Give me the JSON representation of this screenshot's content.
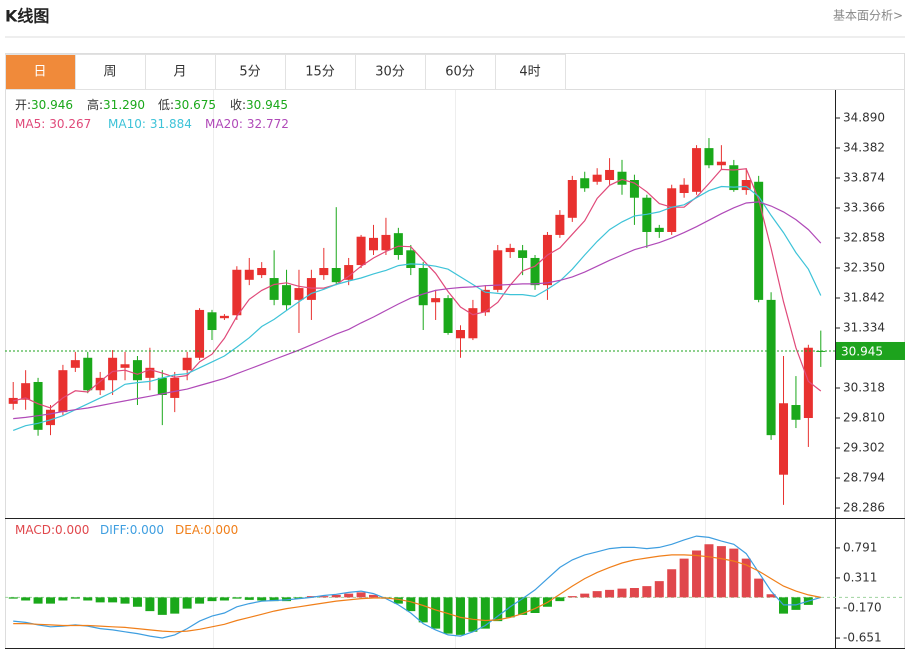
{
  "header": {
    "title": "K线图",
    "link": "基本面分析>"
  },
  "tabs": [
    "日",
    "周",
    "月",
    "5分",
    "15分",
    "30分",
    "60分",
    "4时"
  ],
  "active_tab": 0,
  "chart_data": [
    {
      "type": "candlestick",
      "up_color": "#e8312f",
      "down_color": "#1aa81a",
      "info": [
        {
          "name": "开:",
          "value_label": "30.946"
        },
        {
          "name": "高:",
          "value_label": "31.290"
        },
        {
          "name": "低:",
          "value_label": "30.675"
        },
        {
          "name": "收:",
          "value_label": "30.945"
        }
      ],
      "open": [
        30.05,
        30.12,
        30.42,
        29.69,
        29.91,
        30.66,
        30.83,
        30.28,
        30.45,
        30.66,
        30.79,
        30.49,
        30.49,
        30.15,
        30.62,
        30.83,
        31.6,
        31.5,
        31.55,
        32.15,
        32.23,
        32.18,
        32.06,
        31.81,
        31.81,
        32.23,
        32.35,
        32.15,
        32.4,
        32.65,
        32.65,
        32.94,
        32.65,
        32.35,
        31.77,
        31.84,
        31.16,
        31.16,
        31.6,
        31.98,
        32.62,
        32.65,
        32.52,
        32.06,
        32.91,
        33.2,
        33.87,
        33.81,
        33.84,
        33.98,
        33.84,
        33.54,
        33.03,
        32.96,
        33.62,
        33.64,
        34.38,
        34.09,
        34.09,
        33.67,
        33.81,
        31.81,
        28.85,
        30.03,
        29.81,
        30.946
      ],
      "high": [
        30.42,
        30.62,
        30.49,
        30.03,
        30.71,
        30.93,
        30.93,
        30.59,
        30.96,
        30.93,
        30.86,
        31.0,
        30.62,
        30.59,
        30.93,
        31.67,
        31.64,
        31.57,
        32.38,
        32.52,
        32.45,
        32.65,
        32.32,
        32.32,
        32.32,
        32.69,
        33.38,
        32.52,
        32.91,
        33.08,
        33.2,
        33.03,
        32.74,
        32.45,
        31.98,
        31.89,
        31.38,
        31.81,
        32.06,
        32.74,
        32.76,
        32.74,
        32.57,
        32.96,
        33.33,
        33.91,
        33.98,
        34.04,
        34.21,
        34.18,
        33.93,
        33.59,
        33.08,
        33.76,
        33.87,
        34.43,
        34.55,
        34.43,
        34.18,
        34.04,
        33.91,
        31.94,
        30.86,
        30.52,
        31.05,
        31.29
      ],
      "low": [
        29.95,
        29.95,
        29.51,
        29.52,
        29.86,
        30.59,
        30.23,
        30.2,
        30.2,
        30.45,
        30.03,
        30.28,
        29.69,
        29.91,
        30.45,
        30.79,
        31.13,
        31.47,
        31.47,
        32.06,
        32.18,
        31.72,
        31.64,
        31.25,
        31.47,
        32.15,
        32.06,
        32.06,
        32.35,
        32.57,
        32.57,
        32.49,
        32.23,
        31.3,
        31.47,
        31.22,
        30.83,
        31.13,
        31.54,
        31.94,
        32.52,
        32.23,
        31.98,
        31.81,
        32.86,
        33.13,
        33.64,
        33.76,
        33.76,
        33.59,
        33.08,
        32.69,
        32.86,
        32.91,
        33.54,
        33.59,
        34.04,
        34.01,
        33.64,
        33.59,
        31.77,
        29.44,
        28.34,
        29.64,
        29.32,
        30.675
      ],
      "close": [
        30.15,
        30.4,
        29.61,
        29.95,
        30.62,
        30.79,
        30.28,
        30.49,
        30.83,
        30.72,
        30.45,
        30.66,
        30.2,
        30.49,
        30.83,
        31.64,
        31.3,
        31.54,
        32.32,
        32.32,
        32.35,
        31.81,
        31.72,
        32.01,
        32.18,
        32.35,
        32.11,
        32.4,
        32.88,
        32.86,
        32.91,
        32.57,
        32.35,
        31.72,
        31.84,
        31.25,
        31.3,
        31.67,
        31.98,
        32.65,
        32.69,
        32.52,
        32.06,
        32.91,
        33.25,
        33.84,
        33.7,
        33.93,
        34.01,
        33.76,
        33.54,
        32.96,
        32.96,
        33.7,
        33.76,
        34.38,
        34.09,
        34.15,
        33.67,
        33.84,
        31.81,
        29.52,
        30.06,
        29.78,
        31.0,
        30.945
      ],
      "series": [
        {
          "name": "MA5:",
          "color": "#e04a7a",
          "values": [
            30.1,
            30.15,
            30.05,
            29.98,
            30.15,
            30.27,
            30.25,
            30.43,
            30.6,
            30.62,
            30.55,
            30.63,
            30.57,
            30.5,
            30.53,
            30.76,
            30.89,
            31.16,
            31.53,
            31.82,
            31.97,
            32.07,
            32.1,
            32.04,
            32.01,
            32.01,
            32.07,
            32.21,
            32.38,
            32.52,
            32.63,
            32.72,
            32.71,
            32.48,
            32.26,
            31.95,
            31.69,
            31.56,
            31.61,
            31.77,
            32.06,
            32.3,
            32.38,
            32.57,
            32.69,
            32.92,
            33.15,
            33.53,
            33.75,
            33.85,
            33.79,
            33.64,
            33.44,
            33.38,
            33.38,
            33.55,
            33.78,
            34.02,
            34.01,
            34.03,
            33.51,
            32.68,
            31.78,
            31.0,
            30.43,
            30.267
          ]
        },
        {
          "name": "MA10:",
          "color": "#3ec3d8",
          "values": [
            29.6,
            29.68,
            29.72,
            29.78,
            29.85,
            29.95,
            30.05,
            30.15,
            30.25,
            30.38,
            30.41,
            30.43,
            30.49,
            30.54,
            30.56,
            30.66,
            30.76,
            30.86,
            31.01,
            31.17,
            31.36,
            31.48,
            31.63,
            31.78,
            31.92,
            31.99,
            32.07,
            32.13,
            32.18,
            32.25,
            32.31,
            32.39,
            32.42,
            32.41,
            32.38,
            32.33,
            32.2,
            32.07,
            31.94,
            31.92,
            31.9,
            31.9,
            31.87,
            31.99,
            32.13,
            32.33,
            32.57,
            32.8,
            33.0,
            33.13,
            33.23,
            33.26,
            33.3,
            33.38,
            33.42,
            33.54,
            33.66,
            33.73,
            33.72,
            33.73,
            33.56,
            33.24,
            32.95,
            32.61,
            32.33,
            31.884
          ]
        },
        {
          "name": "MA20:",
          "color": "#b04ab8",
          "values": [
            29.8,
            29.82,
            29.85,
            29.88,
            29.92,
            29.95,
            29.98,
            30.02,
            30.06,
            30.1,
            30.14,
            30.18,
            30.22,
            30.26,
            30.3,
            30.36,
            30.42,
            30.48,
            30.56,
            30.64,
            30.72,
            30.8,
            30.88,
            30.96,
            31.05,
            31.14,
            31.23,
            31.31,
            31.42,
            31.52,
            31.63,
            31.74,
            31.84,
            31.91,
            31.97,
            32.0,
            32.02,
            32.03,
            32.05,
            32.06,
            32.07,
            32.08,
            32.08,
            32.1,
            32.14,
            32.2,
            32.28,
            32.38,
            32.48,
            32.57,
            32.66,
            32.72,
            32.78,
            32.86,
            32.95,
            33.05,
            33.16,
            33.27,
            33.37,
            33.45,
            33.47,
            33.4,
            33.3,
            33.17,
            33.0,
            32.772
          ]
        }
      ],
      "ylim": [
        28.117,
        35.364
      ],
      "yticks": [
        {
          "value": 34.89,
          "label": "34.890"
        },
        34.382,
        33.874,
        33.366,
        32.858,
        {
          "value": 32.35,
          "label": "32.350"
        },
        31.842,
        31.334,
        30.318,
        {
          "value": 29.81,
          "label": "29.810"
        },
        29.302,
        28.794,
        28.286
      ],
      "last_price_color": "#1da31d"
    },
    {
      "type": "macd",
      "ylim": [
        -0.81,
        1.27
      ],
      "yticks": [
        0.791,
        0.311,
        {
          "value": -0.17,
          "label": "-0.170"
        },
        -0.651
      ],
      "series": [
        {
          "name": "MACD:",
          "value_label": "0.000",
          "color": "#e0474c",
          "down_color": "#1aa81a",
          "kind": "bar",
          "values": [
            -0.02,
            -0.05,
            -0.1,
            -0.1,
            -0.05,
            -0.02,
            -0.05,
            -0.08,
            -0.08,
            -0.1,
            -0.15,
            -0.22,
            -0.28,
            -0.26,
            -0.18,
            -0.1,
            -0.06,
            -0.05,
            -0.02,
            -0.04,
            -0.05,
            -0.06,
            -0.06,
            -0.02,
            0.02,
            0.02,
            0.04,
            0.06,
            0.08,
            0.04,
            -0.02,
            -0.1,
            -0.22,
            -0.4,
            -0.5,
            -0.58,
            -0.6,
            -0.55,
            -0.5,
            -0.38,
            -0.32,
            -0.28,
            -0.25,
            -0.15,
            -0.06,
            0.02,
            0.06,
            0.1,
            0.12,
            0.14,
            0.15,
            0.18,
            0.26,
            0.45,
            0.62,
            0.75,
            0.85,
            0.82,
            0.78,
            0.62,
            0.3,
            0.05,
            -0.26,
            -0.2,
            -0.12,
            0
          ]
        },
        {
          "name": "DIFF:",
          "value_label": "0.000",
          "color": "#3e9ee0",
          "kind": "line",
          "values": [
            -0.38,
            -0.4,
            -0.44,
            -0.47,
            -0.46,
            -0.44,
            -0.46,
            -0.5,
            -0.52,
            -0.55,
            -0.58,
            -0.62,
            -0.65,
            -0.6,
            -0.5,
            -0.38,
            -0.3,
            -0.25,
            -0.15,
            -0.1,
            -0.06,
            -0.05,
            -0.04,
            -0.02,
            0,
            0.03,
            0.05,
            0.08,
            0.1,
            0.06,
            -0.02,
            -0.12,
            -0.25,
            -0.42,
            -0.52,
            -0.6,
            -0.62,
            -0.55,
            -0.45,
            -0.3,
            -0.15,
            -0.02,
            0.12,
            0.3,
            0.48,
            0.6,
            0.68,
            0.73,
            0.78,
            0.8,
            0.8,
            0.78,
            0.8,
            0.85,
            0.92,
            0.98,
            0.96,
            0.9,
            0.85,
            0.7,
            0.4,
            0.1,
            -0.12,
            -0.12,
            -0.06,
            0
          ]
        },
        {
          "name": "DEA:",
          "value_label": "0.000",
          "color": "#f07f1a",
          "kind": "line",
          "values": [
            -0.42,
            -0.42,
            -0.43,
            -0.44,
            -0.45,
            -0.45,
            -0.45,
            -0.46,
            -0.47,
            -0.48,
            -0.5,
            -0.52,
            -0.54,
            -0.55,
            -0.54,
            -0.51,
            -0.47,
            -0.43,
            -0.37,
            -0.32,
            -0.27,
            -0.22,
            -0.18,
            -0.15,
            -0.12,
            -0.09,
            -0.06,
            -0.04,
            -0.02,
            -0.01,
            -0.01,
            -0.03,
            -0.07,
            -0.13,
            -0.2,
            -0.26,
            -0.32,
            -0.35,
            -0.37,
            -0.36,
            -0.32,
            -0.26,
            -0.18,
            -0.08,
            0.05,
            0.18,
            0.3,
            0.4,
            0.48,
            0.55,
            0.6,
            0.63,
            0.66,
            0.68,
            0.68,
            0.67,
            0.65,
            0.62,
            0.58,
            0.52,
            0.42,
            0.3,
            0.18,
            0.1,
            0.04,
            0
          ]
        }
      ]
    }
  ]
}
